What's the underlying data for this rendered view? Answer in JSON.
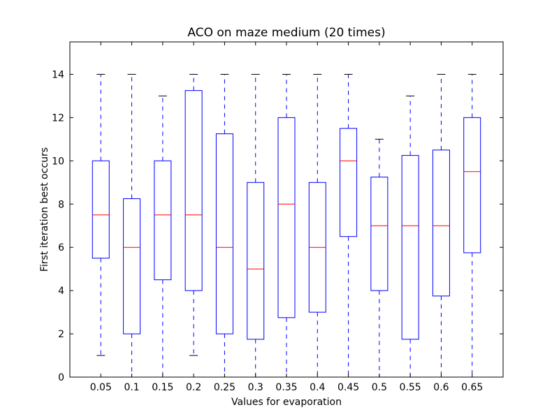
{
  "chart_data": {
    "type": "box",
    "title": "ACO on maze medium (20 times)",
    "xlabel": "Values for evaporation",
    "ylabel": "First iteration best occurs",
    "ylim": [
      0,
      15.5
    ],
    "yticks": [
      0,
      2,
      4,
      6,
      8,
      10,
      12,
      14
    ],
    "grid": false,
    "categories": [
      "0.05",
      "0.1",
      "0.15",
      "0.2",
      "0.25",
      "0.3",
      "0.35",
      "0.4",
      "0.45",
      "0.5",
      "0.55",
      "0.6",
      "0.65"
    ],
    "boxes": [
      {
        "whisker_low": 1,
        "q1": 5.5,
        "median": 7.5,
        "q3": 10,
        "whisker_high": 14
      },
      {
        "whisker_low": 0,
        "q1": 2,
        "median": 6,
        "q3": 8.25,
        "whisker_high": 14
      },
      {
        "whisker_low": 0,
        "q1": 4.5,
        "median": 7.5,
        "q3": 10,
        "whisker_high": 13
      },
      {
        "whisker_low": 1,
        "q1": 4,
        "median": 7.5,
        "q3": 13.25,
        "whisker_high": 14
      },
      {
        "whisker_low": 0,
        "q1": 2,
        "median": 6,
        "q3": 11.25,
        "whisker_high": 14
      },
      {
        "whisker_low": 0,
        "q1": 1.75,
        "median": 5,
        "q3": 9,
        "whisker_high": 14
      },
      {
        "whisker_low": 0,
        "q1": 2.75,
        "median": 8,
        "q3": 12,
        "whisker_high": 14
      },
      {
        "whisker_low": 0,
        "q1": 3,
        "median": 6,
        "q3": 9,
        "whisker_high": 14
      },
      {
        "whisker_low": 0,
        "q1": 6.5,
        "median": 10,
        "q3": 11.5,
        "whisker_high": 14
      },
      {
        "whisker_low": 0,
        "q1": 4,
        "median": 7,
        "q3": 9.25,
        "whisker_high": 11
      },
      {
        "whisker_low": 0,
        "q1": 1.75,
        "median": 7,
        "q3": 10.25,
        "whisker_high": 13
      },
      {
        "whisker_low": 0,
        "q1": 3.75,
        "median": 7,
        "q3": 10.5,
        "whisker_high": 14
      },
      {
        "whisker_low": 0,
        "q1": 5.75,
        "median": 9.5,
        "q3": 12,
        "whisker_high": 14
      }
    ],
    "colors": {
      "box": "#0000ff",
      "median": "#ff0000",
      "whisker": "#0000ff",
      "cap": "#000000"
    }
  }
}
